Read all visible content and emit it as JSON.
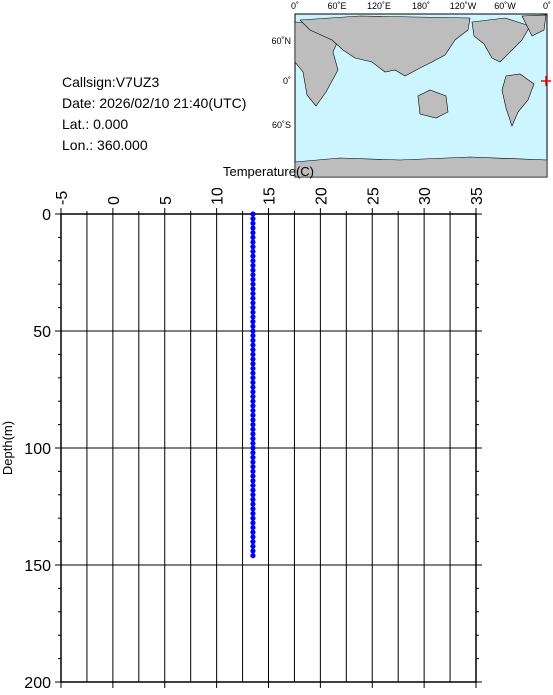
{
  "info": [
    "Callsign:V7UZ3",
    "Date:  2026/02/10 21:40(UTC)",
    "Lat.:   0.000",
    "Lon.:  360.000"
  ],
  "map": {
    "lon_labels": [
      "0˚",
      "60˚E",
      "120˚E",
      "180˚",
      "120˚W",
      "60˚W",
      "0˚"
    ],
    "lat_labels": [
      "60˚N",
      "0˚",
      "60˚S"
    ]
  },
  "chart_data": {
    "type": "scatter",
    "x_label": "Temperature(C)",
    "y_label": "Depth(m)",
    "xlim": [
      -5,
      35
    ],
    "xticks": [
      -5,
      0,
      5,
      10,
      15,
      20,
      25,
      30,
      35
    ],
    "xminorticks": [
      -2.5,
      2.5,
      7.5,
      12.5,
      17.5,
      22.5,
      27.5,
      32.5
    ],
    "ylim": [
      0,
      200
    ],
    "yticks": [
      0,
      50,
      100,
      150,
      200
    ],
    "yminorticks": [
      10,
      20,
      30,
      40,
      60,
      70,
      80,
      90,
      110,
      120,
      130,
      140,
      160,
      170,
      180,
      190
    ],
    "grid": true,
    "inverted_y": true,
    "series": [
      {
        "color": "#0000ff",
        "x": [
          13.5,
          13.5,
          13.5,
          13.5,
          13.5,
          13.5,
          13.5,
          13.5,
          13.5,
          13.5,
          13.5,
          13.5,
          13.5,
          13.5,
          13.5,
          13.5,
          13.5,
          13.5,
          13.5,
          13.5,
          13.5,
          13.5,
          13.5,
          13.5,
          13.5,
          13.5,
          13.5,
          13.5,
          13.5,
          13.5,
          13.5,
          13.5,
          13.5,
          13.5,
          13.5,
          13.5,
          13.5,
          13.5,
          13.5,
          13.5,
          13.5,
          13.5,
          13.5,
          13.5,
          13.5,
          13.5,
          13.5,
          13.5,
          13.5,
          13.5,
          13.5,
          13.5,
          13.5,
          13.5,
          13.5,
          13.5,
          13.5,
          13.5,
          13.5,
          13.5,
          13.5,
          13.5,
          13.5,
          13.5,
          13.5,
          13.5,
          13.5,
          13.5,
          13.5,
          13.5,
          13.5,
          13.5,
          13.5,
          13.5
        ],
        "y": [
          0,
          2,
          4,
          6,
          8,
          10,
          12,
          14,
          16,
          18,
          20,
          22,
          24,
          26,
          28,
          30,
          32,
          34,
          36,
          38,
          40,
          42,
          44,
          46,
          48,
          50,
          52,
          54,
          56,
          58,
          60,
          62,
          64,
          66,
          68,
          70,
          72,
          74,
          76,
          78,
          80,
          82,
          84,
          86,
          88,
          90,
          92,
          94,
          96,
          98,
          100,
          102,
          104,
          106,
          108,
          110,
          112,
          114,
          116,
          118,
          120,
          122,
          124,
          126,
          128,
          130,
          132,
          134,
          136,
          138,
          140,
          142,
          144,
          146
        ]
      }
    ]
  }
}
